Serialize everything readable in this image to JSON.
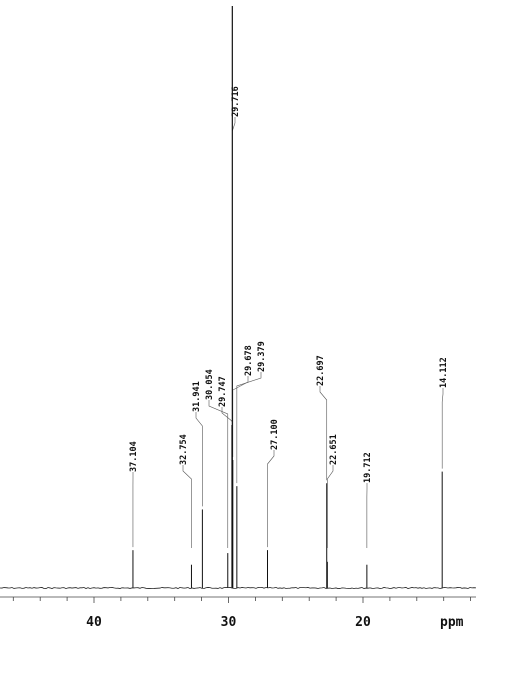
{
  "chart_data": {
    "type": "line",
    "title": "",
    "xlabel": "ppm",
    "ylabel": "",
    "x_reversed": true,
    "xlim": [
      47,
      11.8
    ],
    "ylim": [
      0,
      100
    ],
    "x_major_ticks": [
      40,
      30,
      20
    ],
    "x_tick_labels": [
      "40",
      "30",
      "20"
    ],
    "x_minor_step": 2,
    "grid": false,
    "peaks": [
      {
        "ppm": 37.104,
        "intensity": 6.5,
        "label": "37.104"
      },
      {
        "ppm": 32.754,
        "intensity": 4.0,
        "label": "32.754"
      },
      {
        "ppm": 31.941,
        "intensity": 13.5,
        "label": "31.941"
      },
      {
        "ppm": 30.054,
        "intensity": 6.0,
        "label": "30.054"
      },
      {
        "ppm": 29.747,
        "intensity": 28.0,
        "label": "29.747"
      },
      {
        "ppm": 29.716,
        "intensity": 100,
        "label": "29.716"
      },
      {
        "ppm": 29.678,
        "intensity": 22.0,
        "label": "29.678"
      },
      {
        "ppm": 29.379,
        "intensity": 17.5,
        "label": "29.379"
      },
      {
        "ppm": 27.1,
        "intensity": 6.5,
        "label": "27.100"
      },
      {
        "ppm": 22.697,
        "intensity": 18.0,
        "label": "22.697"
      },
      {
        "ppm": 22.651,
        "intensity": 4.5,
        "label": "22.651"
      },
      {
        "ppm": 19.712,
        "intensity": 4.0,
        "label": "19.712"
      },
      {
        "ppm": 14.112,
        "intensity": 20.0,
        "label": "14.112"
      }
    ]
  }
}
